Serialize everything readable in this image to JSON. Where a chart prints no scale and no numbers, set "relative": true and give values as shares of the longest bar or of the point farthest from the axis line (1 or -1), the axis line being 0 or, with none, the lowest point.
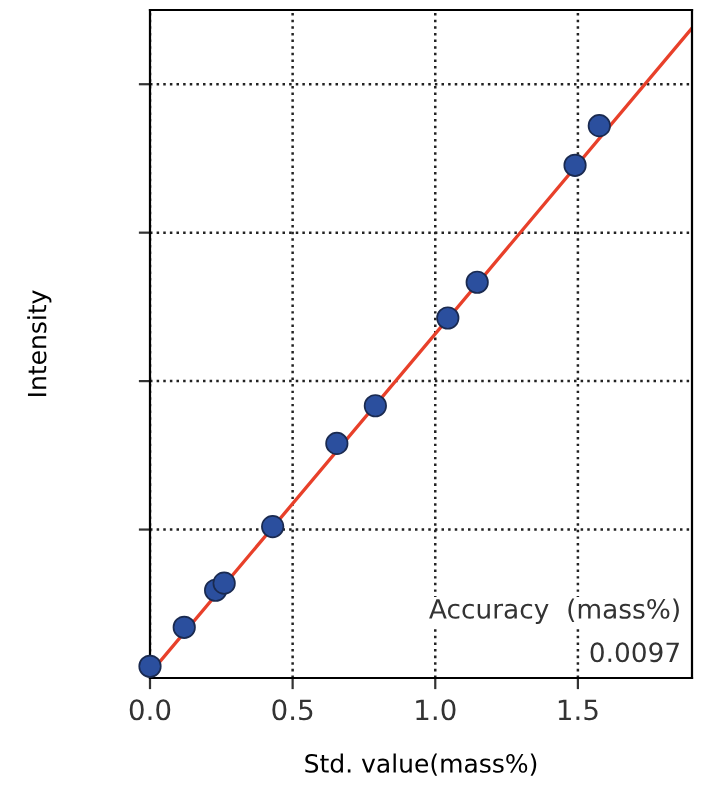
{
  "chart_data": {
    "type": "scatter",
    "xlabel": "Std. value(mass%)",
    "ylabel": "Intensity",
    "relative": true,
    "xlim": [
      0,
      1.9
    ],
    "xticks": [
      {
        "value": 0,
        "label": "0.0"
      },
      0.5,
      {
        "value": 1,
        "label": "1.0"
      },
      1.5
    ],
    "series": [
      {
        "type": "line",
        "color": "#e8402a",
        "x": [
          0,
          1.9
        ],
        "values": [
          0.007,
          1
        ],
        "line_style": "solid",
        "marker": "none"
      },
      {
        "color": "#2b4f9e",
        "marker": "circle",
        "x": [
          0.0,
          0.12,
          0.23,
          0.26,
          0.43,
          0.655,
          0.79,
          1.044,
          1.147,
          1.49,
          1.575
        ],
        "values": [
          0.018,
          0.078,
          0.135,
          0.146,
          0.233,
          0.361,
          0.419,
          0.554,
          0.609,
          0.789,
          0.85
        ]
      }
    ],
    "grid": true,
    "annotations": [
      "Accuracy  (mass%)",
      "0.0097"
    ]
  }
}
